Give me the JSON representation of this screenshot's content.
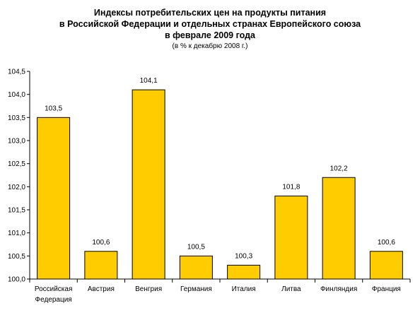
{
  "chart_data": {
    "type": "bar",
    "title_lines": [
      "Индексы потребительских цен на продукты питания",
      "в Российской Федерации и отдельных странах Европейского союза",
      "в феврале 2009 года"
    ],
    "subtitle": "(в % к декабрю 2008 г.)",
    "categories": [
      [
        "Российская",
        "Федерация"
      ],
      [
        "Австрия"
      ],
      [
        "Венгрия"
      ],
      [
        "Германия"
      ],
      [
        "Италия"
      ],
      [
        "Литва"
      ],
      [
        "Финляндия"
      ],
      [
        "Франция"
      ]
    ],
    "values": [
      103.5,
      100.6,
      104.1,
      100.5,
      100.3,
      101.8,
      102.2,
      100.6
    ],
    "value_labels": [
      "103,5",
      "100,6",
      "104,1",
      "100,5",
      "100,3",
      "101,8",
      "102,2",
      "100,6"
    ],
    "yticks": [
      "100,0",
      "100,5",
      "101,0",
      "101,5",
      "102,0",
      "102,5",
      "103,0",
      "103,5",
      "104,0",
      "104,5"
    ],
    "ylim": [
      100.0,
      104.5
    ],
    "grid": false,
    "legend": "none",
    "colors": {
      "bar_fill": "#FFCC00",
      "bar_stroke": "#000000",
      "axis": "#000000"
    }
  }
}
